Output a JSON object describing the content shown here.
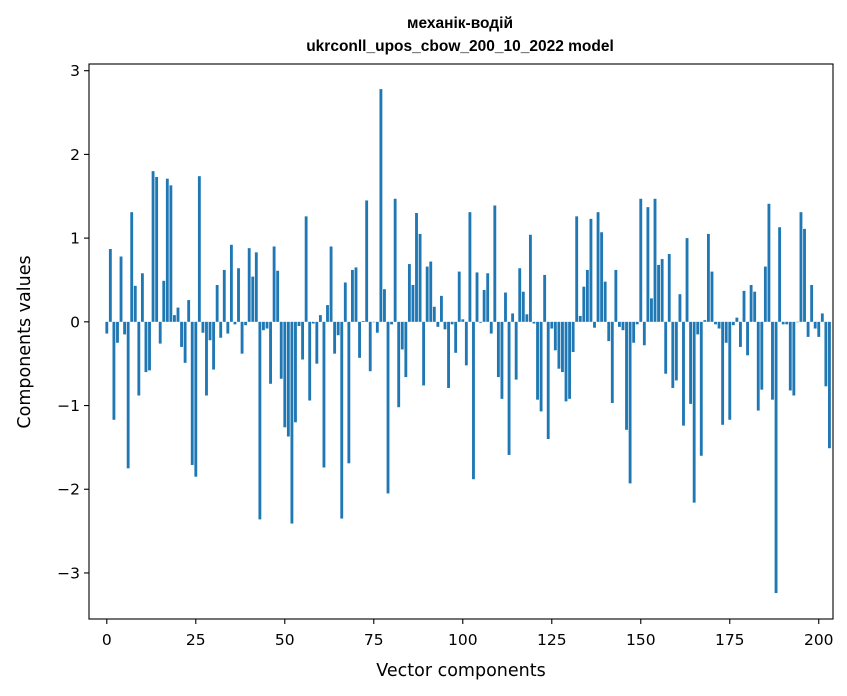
{
  "chart_data": {
    "type": "bar",
    "title": "механік-водій",
    "subtitle": "ukrconll_upos_cbow_200_10_2022 model",
    "xlabel": "Vector components",
    "ylabel": "Components values",
    "xlim": [
      -5,
      204
    ],
    "ylim": [
      -3.55,
      3.08
    ],
    "xticks": [
      0,
      25,
      50,
      75,
      100,
      125,
      150,
      175,
      200
    ],
    "xtick_labels": [
      "0",
      "25",
      "50",
      "75",
      "100",
      "125",
      "150",
      "175",
      "200"
    ],
    "yticks": [
      -3,
      -2,
      -1,
      0,
      1,
      2,
      3
    ],
    "ytick_labels": [
      "−3",
      "−2",
      "−1",
      "0",
      "1",
      "2",
      "3"
    ],
    "bar_color": "#1f77b4",
    "values": [
      -0.14,
      0.87,
      -1.17,
      -0.25,
      0.78,
      -0.15,
      -1.75,
      1.31,
      0.43,
      -0.88,
      0.58,
      -0.6,
      -0.58,
      1.8,
      1.73,
      -0.26,
      0.49,
      1.71,
      1.63,
      0.08,
      0.17,
      -0.3,
      -0.49,
      0.26,
      -1.71,
      -1.85,
      1.74,
      -0.13,
      -0.88,
      -0.22,
      -0.57,
      0.44,
      -0.19,
      0.62,
      -0.14,
      0.92,
      -0.03,
      0.64,
      -0.38,
      -0.04,
      0.88,
      0.54,
      0.83,
      -2.36,
      -0.1,
      -0.08,
      -0.74,
      0.9,
      0.61,
      -0.68,
      -1.26,
      -1.37,
      -2.41,
      -1.2,
      -0.05,
      -0.45,
      1.26,
      -0.94,
      -0.02,
      -0.5,
      0.08,
      -1.74,
      0.2,
      0.9,
      -0.38,
      -0.16,
      -2.35,
      0.47,
      -1.69,
      0.62,
      0.65,
      -0.43,
      0.01,
      1.45,
      -0.59,
      0.0,
      -0.13,
      2.78,
      0.39,
      -2.05,
      -0.03,
      1.47,
      -1.02,
      -0.33,
      -0.66,
      0.69,
      0.44,
      1.3,
      1.05,
      -0.76,
      0.66,
      0.72,
      0.18,
      -0.06,
      0.31,
      -0.09,
      -0.79,
      -0.03,
      -0.37,
      0.6,
      0.03,
      -0.52,
      1.31,
      -1.88,
      0.59,
      -0.01,
      0.38,
      0.58,
      -0.14,
      1.39,
      -0.66,
      -0.92,
      0.35,
      -1.59,
      0.1,
      -0.69,
      0.64,
      0.36,
      0.09,
      1.04,
      -0.02,
      -0.93,
      -1.07,
      0.56,
      -1.4,
      -0.08,
      -0.34,
      -0.56,
      -0.6,
      -0.95,
      -0.92,
      -0.36,
      1.26,
      0.07,
      0.42,
      0.62,
      1.23,
      -0.07,
      1.31,
      1.07,
      0.48,
      -0.23,
      -0.97,
      0.62,
      -0.06,
      -0.1,
      -1.29,
      -1.93,
      -0.25,
      -0.03,
      1.47,
      -0.28,
      1.37,
      0.28,
      1.47,
      0.68,
      0.75,
      -0.62,
      0.81,
      -0.79,
      -0.7,
      0.33,
      -1.24,
      1.0,
      -0.98,
      -2.16,
      -0.15,
      -1.6,
      0.02,
      1.05,
      0.6,
      -0.03,
      -0.08,
      -1.23,
      -0.25,
      -1.17,
      -0.04,
      0.05,
      -0.3,
      0.37,
      -0.4,
      0.44,
      0.36,
      -1.06,
      -0.81,
      0.66,
      1.41,
      -0.93,
      -3.24,
      1.13,
      -0.03,
      -0.03,
      -0.82,
      -0.88,
      0.0,
      1.31,
      1.11,
      -0.18,
      0.44,
      -0.08,
      -0.18,
      0.1,
      -0.77,
      -1.51
    ]
  }
}
